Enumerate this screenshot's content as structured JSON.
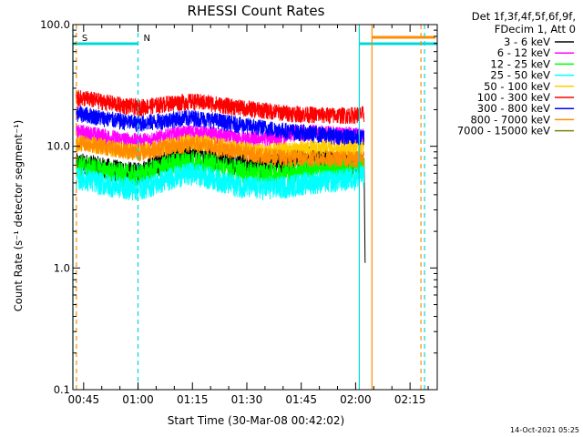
{
  "chart_data": {
    "type": "line",
    "title": "RHESSI Count Rates",
    "xlabel": "Start Time (30-Mar-08 00:42:02)",
    "ylabel": "Count Rate (s⁻¹ detector segment⁻¹)",
    "ylim": [
      0.1,
      100.0
    ],
    "y_scale": "log",
    "xlim": [
      "00:42:02",
      "02:22:30"
    ],
    "x_ticks": [
      "00:45",
      "01:00",
      "01:15",
      "01:30",
      "01:45",
      "02:00",
      "02:15"
    ],
    "y_ticks": [
      "100.0",
      "10.0",
      "1.0",
      "0.1"
    ],
    "grid": false,
    "legend_position": "top-right (outside plot)",
    "legend_header": [
      "Det 1f,3f,4f,5f,6f,9f,",
      "FDecim 1, Att 0"
    ],
    "series": [
      {
        "name": "3 - 6 keV",
        "color": "#000000",
        "x": [
          "00:45",
          "00:50",
          "00:55",
          "01:00",
          "01:05",
          "01:10",
          "01:15",
          "01:20",
          "01:25",
          "01:30",
          "01:35",
          "01:40",
          "01:45",
          "01:50",
          "01:55",
          "02:00",
          "02:02"
        ],
        "values": [
          7.2,
          6.7,
          6.3,
          6.0,
          7.2,
          8.4,
          8.9,
          8.2,
          7.5,
          7.2,
          7.0,
          7.4,
          8.2,
          8.2,
          7.8,
          7.5,
          7.0
        ]
      },
      {
        "name": "6 - 12 keV",
        "color": "#ff00ff",
        "x": [
          "00:45",
          "00:50",
          "00:55",
          "01:00",
          "01:05",
          "01:10",
          "01:15",
          "01:20",
          "01:25",
          "01:30",
          "01:35",
          "01:40",
          "01:45",
          "01:50",
          "01:55",
          "02:00",
          "02:02"
        ],
        "values": [
          13.0,
          12.2,
          11.5,
          11.0,
          11.6,
          12.5,
          13.0,
          12.5,
          11.8,
          11.4,
          11.6,
          12.2,
          13.2,
          13.0,
          12.6,
          12.4,
          12.2
        ]
      },
      {
        "name": "12 - 25 keV",
        "color": "#00ff00",
        "x": [
          "00:45",
          "00:50",
          "00:55",
          "01:00",
          "01:05",
          "01:10",
          "01:15",
          "01:20",
          "01:25",
          "01:30",
          "01:35",
          "01:40",
          "01:45",
          "01:50",
          "01:55",
          "02:00",
          "02:02"
        ],
        "values": [
          6.9,
          6.4,
          6.0,
          5.8,
          6.5,
          7.3,
          7.7,
          7.2,
          6.6,
          6.2,
          6.0,
          6.1,
          6.5,
          6.6,
          6.5,
          6.8,
          7.0
        ]
      },
      {
        "name": "25 - 50 keV",
        "color": "#00ffff",
        "x": [
          "00:45",
          "00:50",
          "00:55",
          "01:00",
          "01:05",
          "01:10",
          "01:15",
          "01:20",
          "01:25",
          "01:30",
          "01:35",
          "01:40",
          "01:45",
          "01:50",
          "01:55",
          "02:00",
          "02:02"
        ],
        "values": [
          5.5,
          5.0,
          4.7,
          4.5,
          5.0,
          5.7,
          6.1,
          5.6,
          5.0,
          4.7,
          4.6,
          4.7,
          5.0,
          5.2,
          5.3,
          5.6,
          5.8
        ]
      },
      {
        "name": "50 - 100 keV",
        "color": "#ffcc00",
        "x": [
          "00:45",
          "00:50",
          "00:55",
          "01:00",
          "01:05",
          "01:10",
          "01:15",
          "01:20",
          "01:25",
          "01:30",
          "01:35",
          "01:40",
          "01:45",
          "01:50",
          "01:55",
          "02:00",
          "02:02"
        ],
        "values": [
          10.5,
          10.0,
          9.5,
          9.2,
          9.8,
          10.6,
          11.0,
          10.5,
          9.9,
          9.4,
          9.2,
          9.3,
          9.6,
          9.8,
          9.8,
          9.9,
          10.0
        ]
      },
      {
        "name": "100 - 300 keV",
        "color": "#ff0000",
        "x": [
          "00:45",
          "00:50",
          "00:55",
          "01:00",
          "01:05",
          "01:10",
          "01:15",
          "01:20",
          "01:25",
          "01:30",
          "01:35",
          "01:40",
          "01:45",
          "01:50",
          "01:55",
          "02:00",
          "02:02"
        ],
        "values": [
          25.0,
          23.5,
          22.0,
          21.0,
          21.8,
          23.0,
          23.5,
          22.8,
          21.5,
          20.5,
          19.8,
          19.0,
          18.5,
          18.2,
          18.0,
          18.2,
          18.5
        ]
      },
      {
        "name": "300 - 800 keV",
        "color": "#0000ff",
        "x": [
          "00:45",
          "00:50",
          "00:55",
          "01:00",
          "01:05",
          "01:10",
          "01:15",
          "01:20",
          "01:25",
          "01:30",
          "01:35",
          "01:40",
          "01:45",
          "01:50",
          "01:55",
          "02:00",
          "02:02"
        ],
        "values": [
          18.5,
          17.2,
          16.2,
          15.5,
          16.0,
          16.8,
          17.2,
          16.6,
          15.6,
          14.8,
          14.2,
          13.6,
          13.0,
          12.6,
          12.2,
          12.0,
          12.0
        ]
      },
      {
        "name": "800 - 7000 keV",
        "color": "#ff8c00",
        "x": [
          "00:45",
          "00:50",
          "00:55",
          "01:00",
          "01:05",
          "01:10",
          "01:15",
          "01:20",
          "01:25",
          "01:30",
          "01:35",
          "01:40",
          "01:45",
          "01:50",
          "01:55",
          "02:00",
          "02:02"
        ],
        "values": [
          10.8,
          10.1,
          9.4,
          8.9,
          9.4,
          10.1,
          10.5,
          10.0,
          9.4,
          8.8,
          8.4,
          8.1,
          8.0,
          7.9,
          7.9,
          8.0,
          8.0
        ]
      },
      {
        "name": "7000 - 15000 keV",
        "color": "#808000",
        "x": [],
        "values": []
      }
    ],
    "annotations": [
      {
        "text": "S",
        "color": "#ff8c00",
        "time": "00:43:00"
      },
      {
        "text": "N",
        "color": "#00d8d8",
        "time": "01:00:00"
      }
    ],
    "status_bars": [
      {
        "color": "#00d8d8",
        "from": "00:42:02",
        "to": "01:00:00",
        "level": 64
      },
      {
        "color": "#00d8d8",
        "from": "02:01:00",
        "to": "02:22:30",
        "level": 64
      },
      {
        "color": "#ff8c00",
        "from": "02:04:30",
        "to": "02:22:00",
        "level": 75
      }
    ],
    "vertical_markers": [
      {
        "color": "#00d8d8",
        "style": "solid",
        "time": "00:42:02"
      },
      {
        "color": "#ff8c00",
        "style": "dashed",
        "time": "00:43:00"
      },
      {
        "color": "#00d8d8",
        "style": "dashed",
        "time": "01:00:00"
      },
      {
        "color": "#00d8d8",
        "style": "solid",
        "time": "02:01:00"
      },
      {
        "color": "#ff8c00",
        "style": "solid",
        "time": "02:04:30"
      },
      {
        "color": "#ff8c00",
        "style": "dashed",
        "time": "02:18:00"
      },
      {
        "color": "#00d8d8",
        "style": "dashed",
        "time": "02:19:00"
      }
    ],
    "footer_timestamp": "14-Oct-2021 05:25"
  }
}
